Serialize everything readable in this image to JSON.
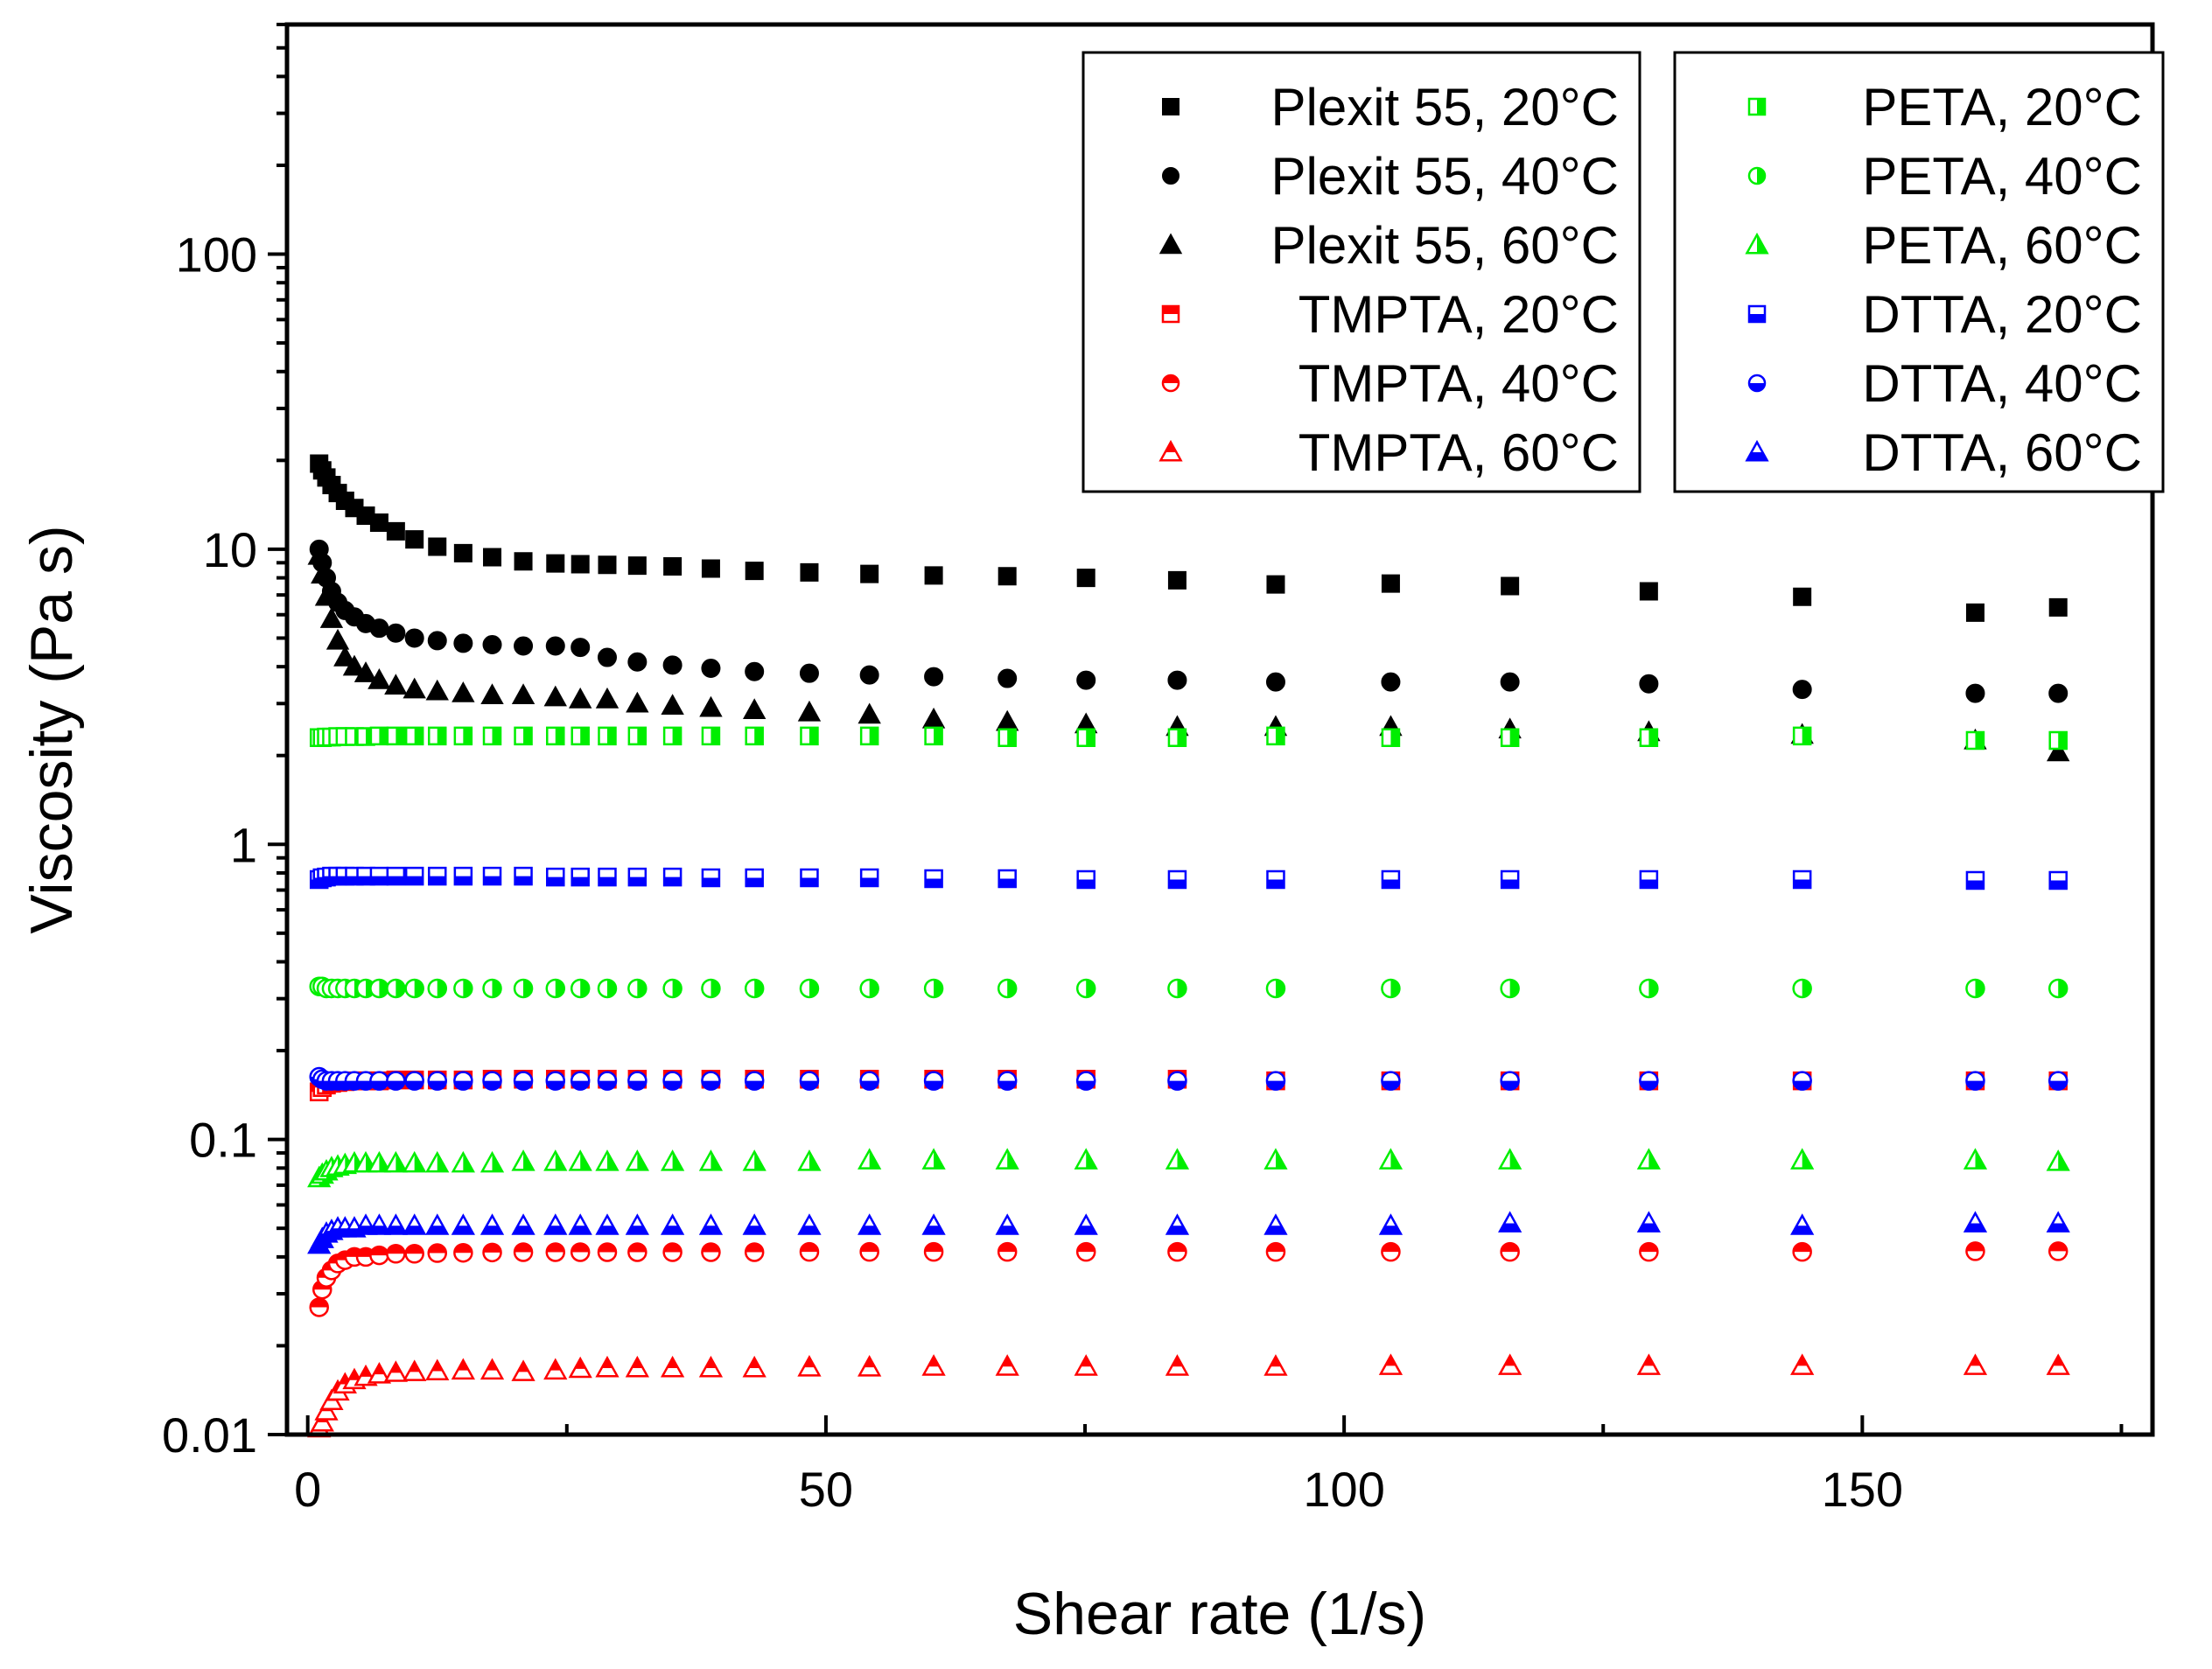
{
  "chart_data": {
    "type": "scatter",
    "title": "",
    "xlabel": "Shear rate (1/s)",
    "ylabel": "Viscosity (Pa s)",
    "xlim": [
      -2,
      178
    ],
    "ylim": [
      0.01,
      600
    ],
    "yscale": "log",
    "grid": false,
    "legend_position": "top-right",
    "x_ticks": [
      0,
      50,
      100,
      150
    ],
    "x_minor_ticks": [
      25,
      75,
      125,
      175
    ],
    "y_ticks": [
      0.01,
      0.1,
      1,
      10,
      100
    ],
    "y_tick_labels": [
      "0.01",
      "0.1",
      "1",
      "10",
      "100"
    ],
    "x_tick_labels": [
      "0",
      "50",
      "100",
      "150"
    ],
    "x": [
      1.1,
      1.4,
      1.8,
      2.3,
      2.9,
      3.6,
      4.5,
      5.6,
      6.9,
      8.5,
      10.3,
      12.5,
      15,
      17.8,
      20.8,
      23.9,
      26.3,
      28.9,
      31.8,
      35.2,
      38.9,
      43.1,
      48.4,
      54.2,
      60.4,
      67.5,
      75.1,
      83.9,
      93.4,
      104.5,
      116,
      129.4,
      144.2,
      160.9,
      168.9
    ],
    "colors": {
      "black": "#000000",
      "red": "#ff0000",
      "green": "#00ee00",
      "blue": "#0000ff"
    },
    "series": [
      {
        "name": "Plexit 55, 20°C",
        "marker": "square",
        "fill": "full",
        "color": "black",
        "values": [
          19.5,
          18.5,
          17.5,
          16.5,
          15.5,
          14.6,
          13.8,
          13.0,
          12.3,
          11.5,
          10.8,
          10.2,
          9.7,
          9.4,
          9.1,
          8.95,
          8.9,
          8.85,
          8.8,
          8.75,
          8.6,
          8.45,
          8.35,
          8.25,
          8.15,
          8.1,
          8.0,
          7.85,
          7.6,
          7.65,
          7.5,
          7.2,
          6.9,
          6.1,
          6.35
        ]
      },
      {
        "name": "Plexit 55, 40°C",
        "marker": "circle",
        "fill": "full",
        "color": "black",
        "values": [
          10.0,
          9.0,
          8.0,
          7.2,
          6.6,
          6.2,
          5.9,
          5.6,
          5.4,
          5.2,
          5.0,
          4.9,
          4.8,
          4.75,
          4.7,
          4.7,
          4.65,
          4.3,
          4.15,
          4.05,
          3.95,
          3.85,
          3.8,
          3.75,
          3.7,
          3.65,
          3.6,
          3.6,
          3.55,
          3.55,
          3.55,
          3.5,
          3.35,
          3.25,
          3.25
        ]
      },
      {
        "name": "Plexit 55, 60°C",
        "marker": "triangle",
        "fill": "full",
        "color": "black",
        "values": [
          9.5,
          8.2,
          6.9,
          5.8,
          4.9,
          4.3,
          4.0,
          3.8,
          3.6,
          3.45,
          3.35,
          3.3,
          3.25,
          3.2,
          3.2,
          3.15,
          3.1,
          3.1,
          3.0,
          2.95,
          2.9,
          2.85,
          2.8,
          2.75,
          2.65,
          2.6,
          2.55,
          2.5,
          2.5,
          2.5,
          2.45,
          2.4,
          2.35,
          2.25,
          2.05
        ]
      },
      {
        "name": "TMPTA, 20°C",
        "marker": "square",
        "fill": "top",
        "color": "red",
        "values": [
          0.145,
          0.15,
          0.153,
          0.155,
          0.156,
          0.157,
          0.158,
          0.158,
          0.158,
          0.159,
          0.159,
          0.159,
          0.159,
          0.16,
          0.16,
          0.16,
          0.16,
          0.16,
          0.16,
          0.16,
          0.16,
          0.16,
          0.16,
          0.16,
          0.16,
          0.16,
          0.16,
          0.16,
          0.158,
          0.158,
          0.158,
          0.158,
          0.158,
          0.158,
          0.158
        ]
      },
      {
        "name": "TMPTA, 40°C",
        "marker": "circle",
        "fill": "top",
        "color": "red",
        "values": [
          0.027,
          0.031,
          0.034,
          0.036,
          0.038,
          0.039,
          0.04,
          0.04,
          0.0405,
          0.041,
          0.041,
          0.0412,
          0.0413,
          0.0414,
          0.0415,
          0.0415,
          0.0415,
          0.0415,
          0.0415,
          0.0415,
          0.0415,
          0.0415,
          0.0416,
          0.0416,
          0.0416,
          0.0416,
          0.0416,
          0.0416,
          0.0416,
          0.0416,
          0.0416,
          0.0416,
          0.0416,
          0.0418,
          0.0418
        ]
      },
      {
        "name": "TMPTA, 60°C",
        "marker": "triangle",
        "fill": "top",
        "color": "red",
        "values": [
          0.0105,
          0.011,
          0.012,
          0.013,
          0.014,
          0.0148,
          0.0153,
          0.0157,
          0.016,
          0.0162,
          0.0163,
          0.0164,
          0.0165,
          0.0165,
          0.0163,
          0.0165,
          0.0167,
          0.0168,
          0.0168,
          0.0168,
          0.0168,
          0.0168,
          0.0169,
          0.0169,
          0.017,
          0.017,
          0.017,
          0.017,
          0.017,
          0.0171,
          0.0171,
          0.0171,
          0.0171,
          0.0171,
          0.0171
        ]
      },
      {
        "name": "PETA, 20°C",
        "marker": "square",
        "fill": "right",
        "color": "green",
        "values": [
          2.3,
          2.3,
          2.31,
          2.31,
          2.32,
          2.32,
          2.32,
          2.32,
          2.33,
          2.33,
          2.33,
          2.33,
          2.33,
          2.33,
          2.33,
          2.33,
          2.33,
          2.33,
          2.33,
          2.33,
          2.33,
          2.33,
          2.33,
          2.33,
          2.33,
          2.3,
          2.3,
          2.3,
          2.33,
          2.3,
          2.3,
          2.3,
          2.33,
          2.25,
          2.25
        ]
      },
      {
        "name": "PETA, 40°C",
        "marker": "circle",
        "fill": "right",
        "color": "green",
        "values": [
          0.33,
          0.33,
          0.325,
          0.325,
          0.325,
          0.325,
          0.325,
          0.325,
          0.325,
          0.325,
          0.325,
          0.325,
          0.325,
          0.325,
          0.325,
          0.325,
          0.325,
          0.325,
          0.325,
          0.325,
          0.325,
          0.325,
          0.325,
          0.325,
          0.325,
          0.325,
          0.325,
          0.325,
          0.325,
          0.325,
          0.325,
          0.325,
          0.325,
          0.325,
          0.325
        ]
      },
      {
        "name": "PETA, 60°C",
        "marker": "triangle",
        "fill": "right",
        "color": "green",
        "values": [
          0.074,
          0.076,
          0.078,
          0.08,
          0.081,
          0.082,
          0.083,
          0.083,
          0.083,
          0.083,
          0.083,
          0.083,
          0.083,
          0.083,
          0.084,
          0.084,
          0.084,
          0.084,
          0.084,
          0.084,
          0.084,
          0.084,
          0.084,
          0.085,
          0.085,
          0.085,
          0.085,
          0.085,
          0.085,
          0.085,
          0.085,
          0.085,
          0.085,
          0.085,
          0.084
        ]
      },
      {
        "name": "DTTA, 20°C",
        "marker": "square",
        "fill": "bottom",
        "color": "blue",
        "values": [
          0.76,
          0.77,
          0.775,
          0.78,
          0.78,
          0.78,
          0.78,
          0.78,
          0.78,
          0.78,
          0.78,
          0.78,
          0.78,
          0.78,
          0.78,
          0.775,
          0.775,
          0.775,
          0.775,
          0.775,
          0.77,
          0.77,
          0.77,
          0.77,
          0.765,
          0.765,
          0.76,
          0.76,
          0.76,
          0.76,
          0.76,
          0.76,
          0.76,
          0.755,
          0.755
        ]
      },
      {
        "name": "DTTA, 40°C",
        "marker": "circle",
        "fill": "bottom",
        "color": "blue",
        "values": [
          0.163,
          0.16,
          0.158,
          0.158,
          0.158,
          0.158,
          0.158,
          0.158,
          0.158,
          0.158,
          0.158,
          0.158,
          0.158,
          0.158,
          0.158,
          0.158,
          0.158,
          0.158,
          0.158,
          0.158,
          0.158,
          0.158,
          0.158,
          0.158,
          0.158,
          0.158,
          0.158,
          0.158,
          0.158,
          0.158,
          0.158,
          0.158,
          0.158,
          0.158,
          0.158
        ]
      },
      {
        "name": "DTTA, 60°C",
        "marker": "triangle",
        "fill": "bottom",
        "color": "blue",
        "values": [
          0.044,
          0.046,
          0.048,
          0.049,
          0.05,
          0.05,
          0.05,
          0.051,
          0.051,
          0.051,
          0.051,
          0.051,
          0.051,
          0.051,
          0.051,
          0.051,
          0.051,
          0.051,
          0.051,
          0.051,
          0.051,
          0.051,
          0.051,
          0.051,
          0.051,
          0.051,
          0.051,
          0.051,
          0.051,
          0.051,
          0.052,
          0.052,
          0.051,
          0.052,
          0.052
        ]
      }
    ],
    "legend_columns": [
      [
        0,
        1,
        2,
        3,
        4,
        5
      ],
      [
        6,
        7,
        8,
        9,
        10,
        11
      ]
    ]
  }
}
